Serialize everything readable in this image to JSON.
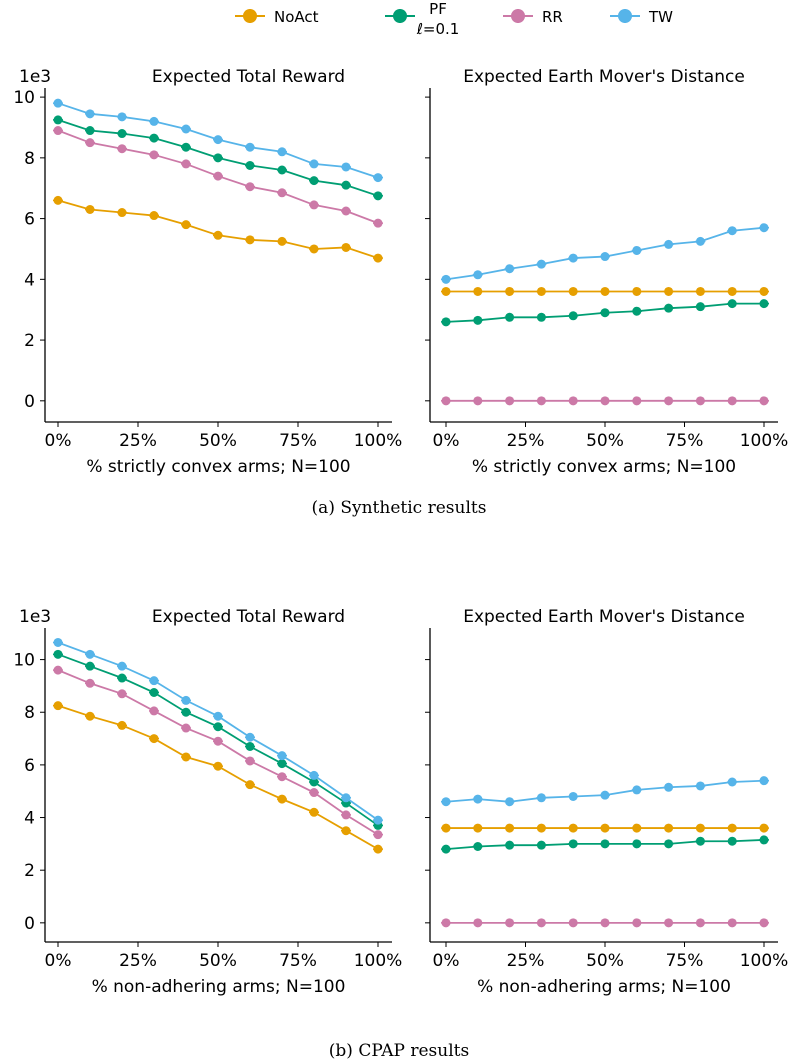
{
  "legend": [
    {
      "name": "NoAct",
      "label": "NoAct",
      "color": "#E69F00"
    },
    {
      "name": "PF",
      "label": "PF",
      "label2": "ℓ=0.1",
      "color": "#009E73"
    },
    {
      "name": "RR",
      "label": "RR",
      "color": "#CC79A7"
    },
    {
      "name": "TW",
      "label": "TW",
      "color": "#56B4E9"
    }
  ],
  "captions": {
    "a": "(a)  Synthetic results",
    "b": "(b)  CPAP results"
  },
  "chart_data": [
    {
      "type": "line",
      "title": "Expected Total Reward",
      "xlabel": "% strictly convex arms; N=100",
      "ylabel": "",
      "y_multiplier": "1e3",
      "x": [
        0,
        10,
        20,
        30,
        40,
        50,
        60,
        70,
        80,
        90,
        100
      ],
      "xticks": [
        "0%",
        "25%",
        "50%",
        "75%",
        "100%"
      ],
      "yticks": [
        0,
        2,
        4,
        6,
        8,
        10
      ],
      "ylim": [
        -0.5,
        10.3
      ],
      "series": [
        {
          "name": "NoAct",
          "values": [
            6.6,
            6.3,
            6.2,
            6.1,
            5.8,
            5.45,
            5.3,
            5.25,
            5.0,
            5.05,
            4.7
          ]
        },
        {
          "name": "PF",
          "values": [
            9.25,
            8.9,
            8.8,
            8.65,
            8.35,
            8.0,
            7.75,
            7.6,
            7.25,
            7.1,
            6.75
          ]
        },
        {
          "name": "RR",
          "values": [
            8.9,
            8.5,
            8.3,
            8.1,
            7.8,
            7.4,
            7.05,
            6.85,
            6.45,
            6.25,
            5.85
          ]
        },
        {
          "name": "TW",
          "values": [
            9.8,
            9.45,
            9.35,
            9.2,
            8.95,
            8.6,
            8.35,
            8.2,
            7.8,
            7.7,
            7.35
          ]
        }
      ]
    },
    {
      "type": "line",
      "title": "Expected Earth Mover's Distance",
      "xlabel": "% strictly convex arms; N=100",
      "ylabel": "",
      "x": [
        0,
        10,
        20,
        30,
        40,
        50,
        60,
        70,
        80,
        90,
        100
      ],
      "xticks": [
        "0%",
        "25%",
        "50%",
        "75%",
        "100%"
      ],
      "yticks": [
        0,
        2,
        4,
        6,
        8,
        10
      ],
      "ylim": [
        -0.5,
        10.3
      ],
      "series": [
        {
          "name": "NoAct",
          "values": [
            3.6,
            3.6,
            3.6,
            3.6,
            3.6,
            3.6,
            3.6,
            3.6,
            3.6,
            3.6,
            3.6
          ]
        },
        {
          "name": "PF",
          "values": [
            2.6,
            2.65,
            2.75,
            2.75,
            2.8,
            2.9,
            2.95,
            3.05,
            3.1,
            3.2,
            3.2
          ]
        },
        {
          "name": "RR",
          "values": [
            0,
            0,
            0,
            0,
            0,
            0,
            0,
            0,
            0,
            0,
            0
          ]
        },
        {
          "name": "TW",
          "values": [
            4.0,
            4.15,
            4.35,
            4.5,
            4.7,
            4.75,
            4.95,
            5.15,
            5.25,
            5.6,
            5.7
          ]
        }
      ]
    },
    {
      "type": "line",
      "title": "Expected Total Reward",
      "xlabel": "% non-adhering arms; N=100",
      "ylabel": "",
      "y_multiplier": "1e3",
      "x": [
        0,
        10,
        20,
        30,
        40,
        50,
        60,
        70,
        80,
        90,
        100
      ],
      "xticks": [
        "0%",
        "25%",
        "50%",
        "75%",
        "100%"
      ],
      "yticks": [
        0,
        2,
        4,
        6,
        8,
        10
      ],
      "ylim": [
        -0.5,
        11.2
      ],
      "series": [
        {
          "name": "NoAct",
          "values": [
            8.25,
            7.85,
            7.5,
            7.0,
            6.3,
            5.95,
            5.25,
            4.7,
            4.2,
            3.5,
            2.8
          ]
        },
        {
          "name": "PF",
          "values": [
            10.2,
            9.75,
            9.3,
            8.75,
            8.0,
            7.45,
            6.7,
            6.05,
            5.35,
            4.55,
            3.7
          ]
        },
        {
          "name": "RR",
          "values": [
            9.6,
            9.1,
            8.7,
            8.05,
            7.4,
            6.9,
            6.15,
            5.55,
            4.95,
            4.1,
            3.35
          ]
        },
        {
          "name": "TW",
          "values": [
            10.65,
            10.2,
            9.75,
            9.2,
            8.45,
            7.85,
            7.05,
            6.35,
            5.6,
            4.75,
            3.9
          ]
        }
      ]
    },
    {
      "type": "line",
      "title": "Expected Earth Mover's Distance",
      "xlabel": "% non-adhering arms; N=100",
      "ylabel": "",
      "x": [
        0,
        10,
        20,
        30,
        40,
        50,
        60,
        70,
        80,
        90,
        100
      ],
      "xticks": [
        "0%",
        "25%",
        "50%",
        "75%",
        "100%"
      ],
      "yticks": [
        0,
        2,
        4,
        6,
        8,
        10
      ],
      "ylim": [
        -0.5,
        11.2
      ],
      "series": [
        {
          "name": "NoAct",
          "values": [
            3.6,
            3.6,
            3.6,
            3.6,
            3.6,
            3.6,
            3.6,
            3.6,
            3.6,
            3.6,
            3.6
          ]
        },
        {
          "name": "PF",
          "values": [
            2.8,
            2.9,
            2.95,
            2.95,
            3.0,
            3.0,
            3.0,
            3.0,
            3.1,
            3.1,
            3.15
          ]
        },
        {
          "name": "RR",
          "values": [
            0,
            0,
            0,
            0,
            0,
            0,
            0,
            0,
            0,
            0,
            0
          ]
        },
        {
          "name": "TW",
          "values": [
            4.6,
            4.7,
            4.6,
            4.75,
            4.8,
            4.85,
            5.05,
            5.15,
            5.2,
            5.35,
            5.4
          ]
        }
      ]
    }
  ]
}
